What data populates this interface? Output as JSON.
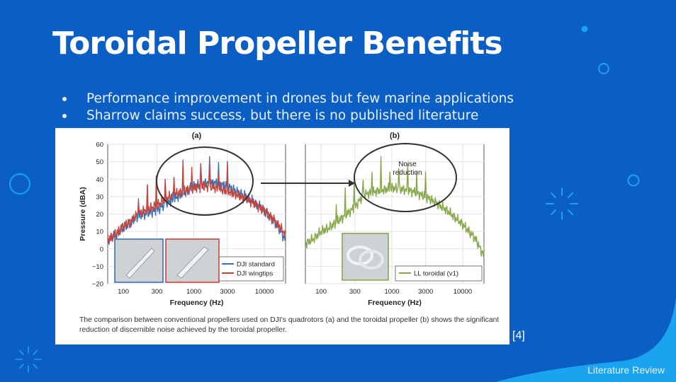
{
  "slide": {
    "title": "Toroidal Propeller Benefits",
    "bullets": [
      "Performance improvement in drones but few marine applications",
      "Sharrow claims success, but there is no published literature"
    ],
    "reference": "[4]",
    "footer": "Literature Review",
    "colors": {
      "background": "#0b5fc4",
      "accent": "#1aa3ee"
    }
  },
  "figure": {
    "caption": "The comparison between conventional  propellers used on DJI's quadrotors (a) and the toroidal propeller (b) shows the significant reduction of discernible noise achieved by the toroidal propeller.",
    "panel_labels": [
      "(a)",
      "(b)"
    ],
    "annotation": "Noise reduction",
    "icons": [
      "propeller-standard-photo",
      "propeller-wingtips-photo",
      "propeller-toroidal-photo"
    ]
  },
  "chart_data": [
    {
      "type": "line",
      "panel": "(a)",
      "xlabel": "Frequency (Hz)",
      "ylabel": "Pressure (dBA)",
      "x_scale": "log",
      "xlim": [
        60,
        20000
      ],
      "ylim": [
        -20,
        60
      ],
      "xticks": [
        "100",
        "300",
        "1000",
        "3000",
        "10000"
      ],
      "yticks": [
        "60",
        "50",
        "40",
        "30",
        "20",
        "10",
        "0",
        "−10",
        "−20"
      ],
      "grid": true,
      "legend": "bottom-right",
      "series": [
        {
          "name": "DJI standard",
          "color": "#3a6fb5",
          "x": [
            60,
            80,
            100,
            130,
            150,
            200,
            300,
            400,
            600,
            800,
            1000,
            1500,
            2000,
            3000,
            4000,
            6000,
            10000,
            15000,
            20000
          ],
          "y": [
            5,
            8,
            12,
            15,
            18,
            20,
            22,
            26,
            30,
            33,
            36,
            38,
            38,
            36,
            33,
            29,
            22,
            14,
            5
          ]
        },
        {
          "name": "DJI wingtips",
          "color": "#c8443b",
          "x": [
            60,
            80,
            100,
            130,
            150,
            200,
            300,
            400,
            600,
            800,
            1000,
            1500,
            2000,
            3000,
            4000,
            6000,
            10000,
            15000,
            20000
          ],
          "y": [
            5,
            9,
            13,
            16,
            19,
            22,
            25,
            29,
            32,
            34,
            35,
            36,
            35,
            33,
            31,
            28,
            22,
            15,
            8
          ]
        }
      ]
    },
    {
      "type": "line",
      "panel": "(b)",
      "xlabel": "Frequency (Hz)",
      "x_scale": "log",
      "xlim": [
        60,
        20000
      ],
      "ylim": [
        -20,
        60
      ],
      "xticks": [
        "100",
        "300",
        "1000",
        "3000",
        "10000"
      ],
      "grid": true,
      "legend": "bottom-right",
      "series": [
        {
          "name": "LL toroidal (v1)",
          "color": "#86a84a",
          "x": [
            60,
            80,
            100,
            130,
            150,
            200,
            300,
            400,
            600,
            800,
            1000,
            1500,
            2000,
            3000,
            4000,
            6000,
            10000,
            15000,
            20000
          ],
          "y": [
            3,
            6,
            10,
            12,
            14,
            18,
            24,
            31,
            33,
            34,
            35,
            34,
            33,
            30,
            27,
            22,
            14,
            6,
            -4
          ]
        }
      ]
    }
  ]
}
